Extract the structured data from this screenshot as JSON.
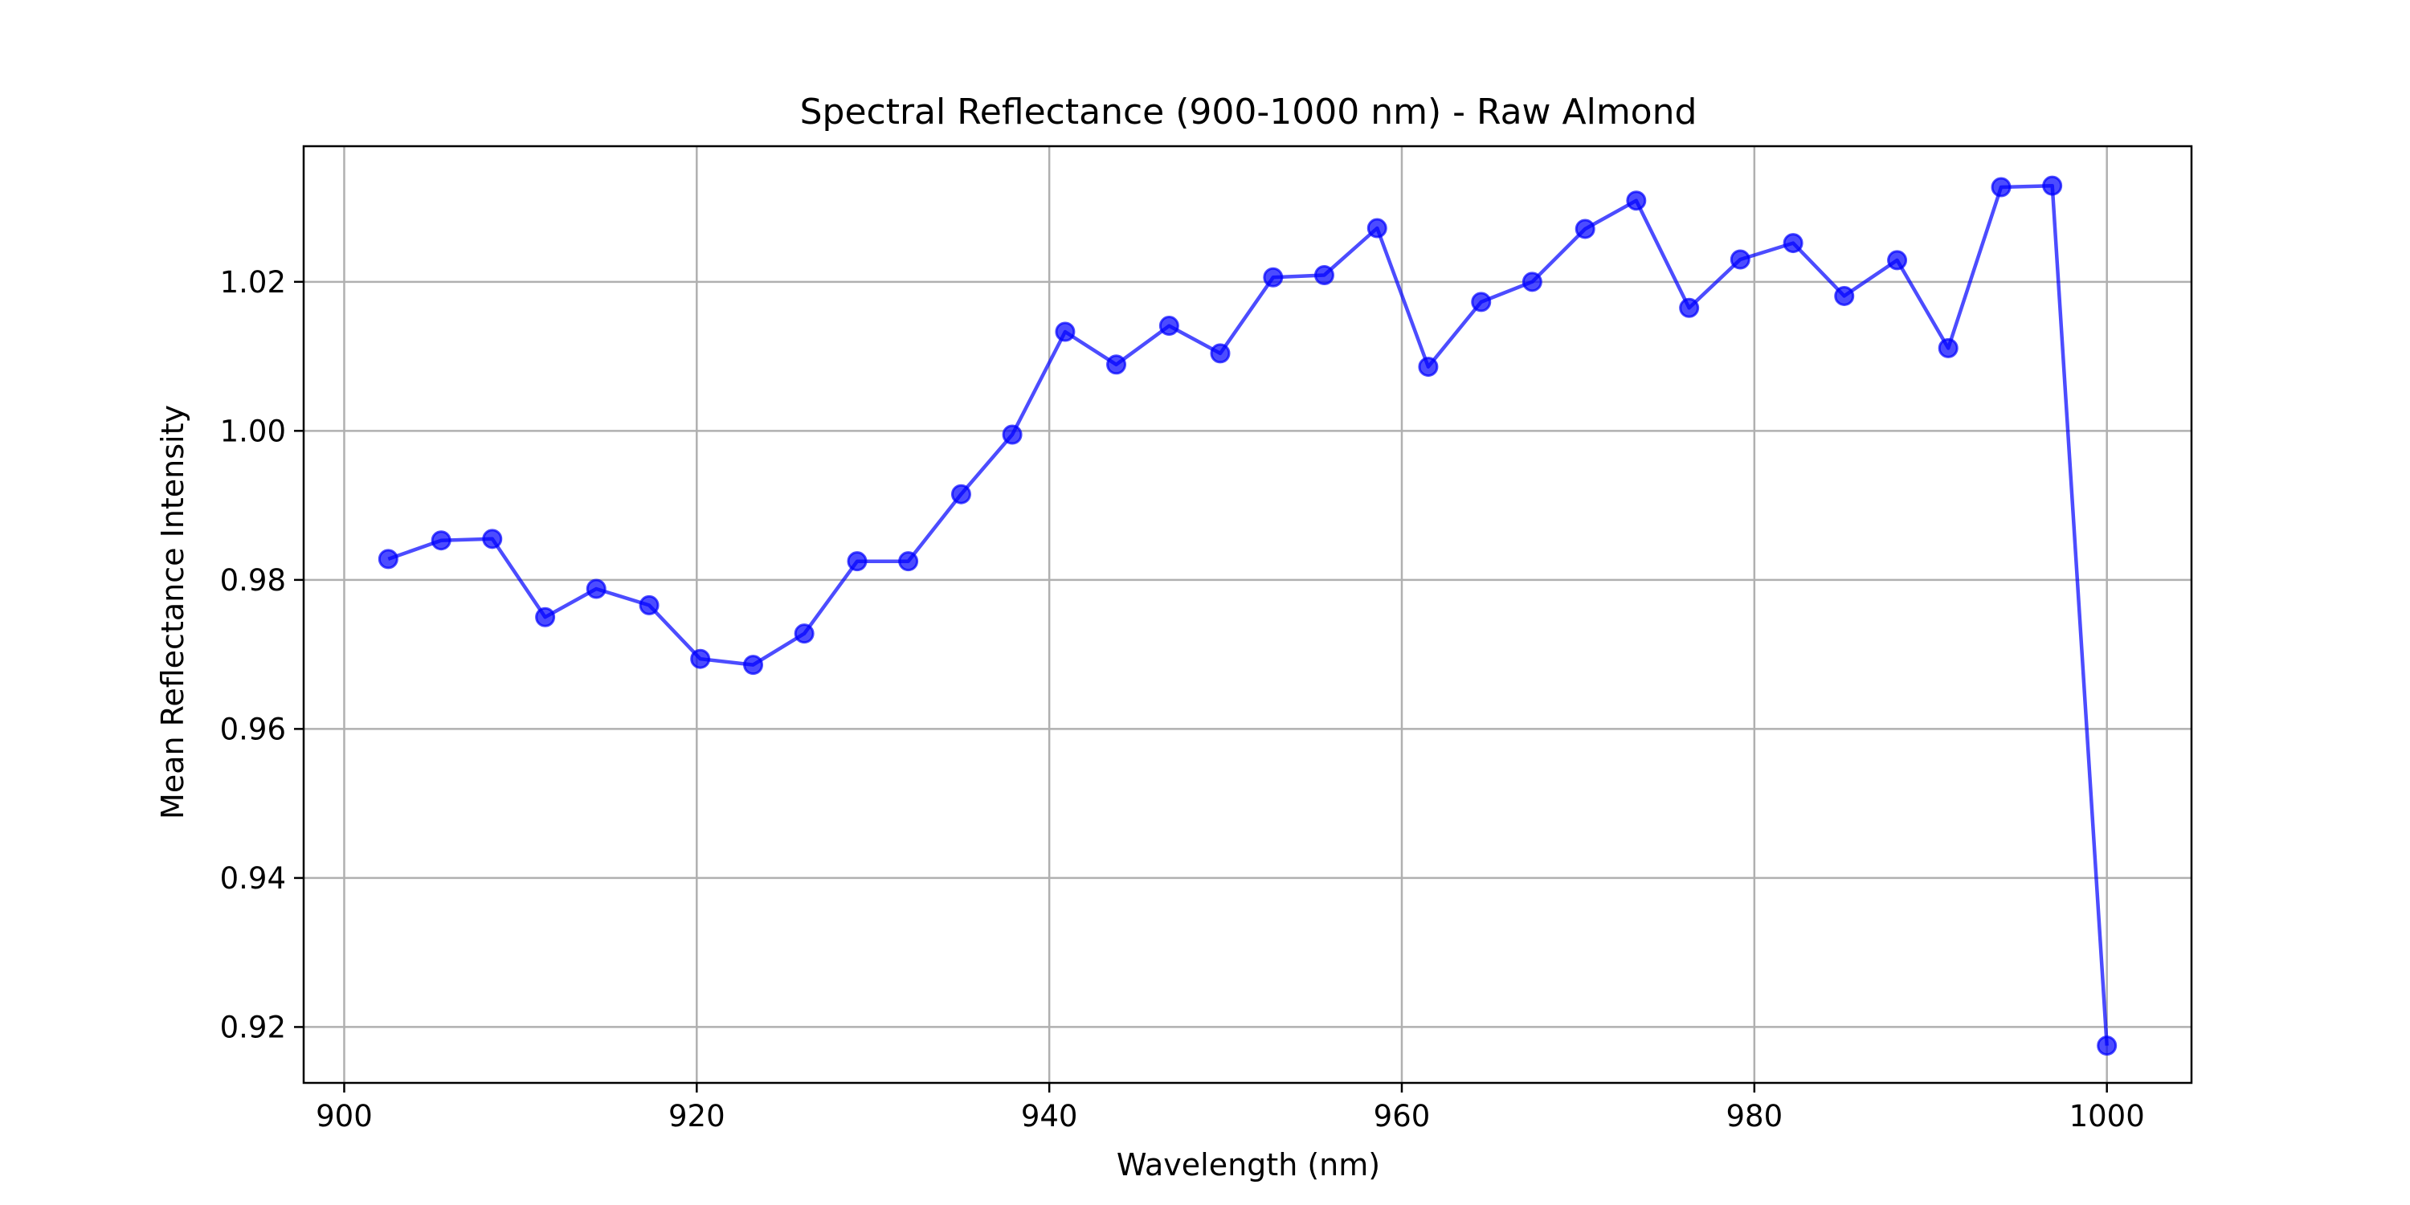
{
  "chart_data": {
    "type": "line",
    "title": "Spectral Reflectance (900-1000 nm) - Raw Almond",
    "xlabel": "Wavelength (nm)",
    "ylabel": "Mean Reflectance Intensity",
    "xlim": [
      897.7,
      1004.8
    ],
    "ylim": [
      0.9125,
      1.0382
    ],
    "xticks": [
      900,
      920,
      940,
      960,
      980,
      1000
    ],
    "xtick_labels": [
      "900",
      "920",
      "940",
      "960",
      "980",
      "1000"
    ],
    "yticks": [
      0.92,
      0.94,
      0.96,
      0.98,
      1.0,
      1.02
    ],
    "ytick_labels": [
      "0.92",
      "0.94",
      "0.96",
      "0.98",
      "1.00",
      "1.02"
    ],
    "grid": true,
    "legend": "none",
    "series": [
      {
        "color": "#0000ff",
        "marker": "circle",
        "x": [
          902.5,
          905.5,
          908.4,
          911.4,
          914.3,
          917.3,
          920.2,
          923.2,
          926.1,
          929.1,
          932.0,
          935.0,
          937.9,
          940.9,
          943.8,
          946.8,
          949.7,
          952.7,
          955.6,
          958.6,
          961.5,
          964.5,
          967.4,
          970.4,
          973.3,
          976.3,
          979.2,
          982.2,
          985.1,
          988.1,
          991.0,
          994.0,
          996.9,
          1000.0
        ],
        "y": [
          0.9828,
          0.9853,
          0.9855,
          0.975,
          0.9788,
          0.9766,
          0.9694,
          0.9686,
          0.9728,
          0.9825,
          0.9825,
          0.9915,
          0.9995,
          1.0133,
          1.0089,
          1.0141,
          1.0104,
          1.0206,
          1.0209,
          1.0272,
          1.0086,
          1.0173,
          1.02,
          1.0271,
          1.0309,
          1.0165,
          1.023,
          1.0252,
          1.0181,
          1.0229,
          1.0111,
          1.0327,
          1.0329,
          0.9175
        ]
      }
    ]
  }
}
